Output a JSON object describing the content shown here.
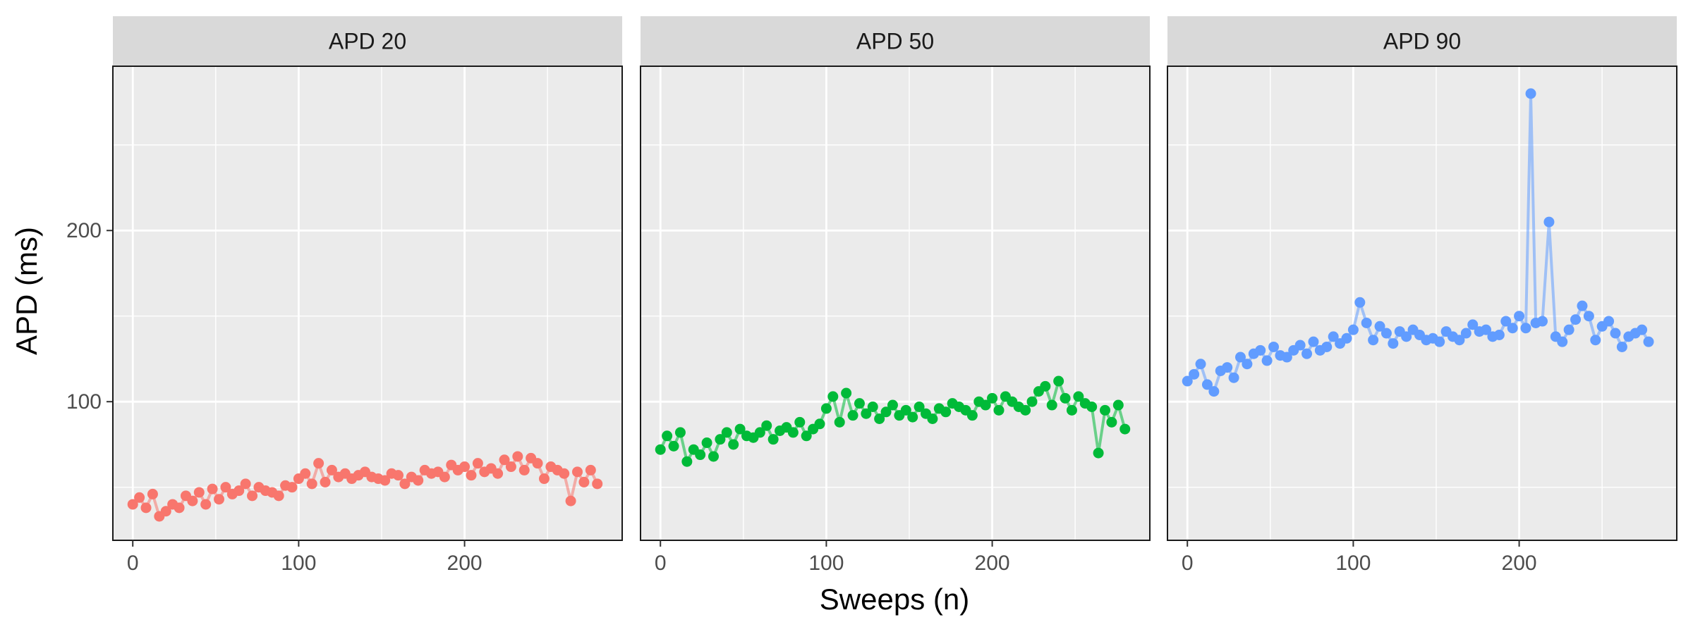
{
  "chart_data": {
    "type": "line",
    "xlabel": "Sweeps (n)",
    "ylabel": "APD (ms)",
    "xlim": [
      -12,
      295
    ],
    "ylim": [
      19,
      296
    ],
    "xticks": [
      0,
      100,
      200
    ],
    "yticks": [
      100,
      200
    ],
    "grid": true,
    "legend": "none",
    "panels": [
      {
        "name": "APD 20",
        "color": "#F8766D",
        "x": [
          0,
          4,
          8,
          12,
          16,
          20,
          24,
          28,
          32,
          36,
          40,
          44,
          48,
          52,
          56,
          60,
          64,
          68,
          72,
          76,
          80,
          84,
          88,
          92,
          96,
          100,
          104,
          108,
          112,
          116,
          120,
          124,
          128,
          132,
          136,
          140,
          144,
          148,
          152,
          156,
          160,
          164,
          168,
          172,
          176,
          180,
          184,
          188,
          192,
          196,
          200,
          204,
          208,
          212,
          216,
          220,
          224,
          228,
          232,
          236,
          240,
          244,
          248,
          252,
          256,
          260,
          264,
          268,
          272,
          276,
          280
        ],
        "y": [
          40,
          44,
          38,
          46,
          33,
          36,
          40,
          38,
          45,
          42,
          47,
          40,
          49,
          43,
          50,
          46,
          48,
          52,
          45,
          50,
          48,
          47,
          45,
          51,
          50,
          55,
          58,
          52,
          64,
          53,
          60,
          56,
          58,
          55,
          57,
          59,
          56,
          55,
          54,
          58,
          57,
          52,
          56,
          54,
          60,
          58,
          59,
          56,
          63,
          60,
          62,
          57,
          64,
          59,
          61,
          58,
          66,
          62,
          68,
          60,
          67,
          64,
          55,
          62,
          60,
          58,
          42,
          59,
          53,
          60,
          52
        ]
      },
      {
        "name": "APD 50",
        "color": "#00BA38",
        "x": [
          0,
          4,
          8,
          12,
          16,
          20,
          24,
          28,
          32,
          36,
          40,
          44,
          48,
          52,
          56,
          60,
          64,
          68,
          72,
          76,
          80,
          84,
          88,
          92,
          96,
          100,
          104,
          108,
          112,
          116,
          120,
          124,
          128,
          132,
          136,
          140,
          144,
          148,
          152,
          156,
          160,
          164,
          168,
          172,
          176,
          180,
          184,
          188,
          192,
          196,
          200,
          204,
          208,
          212,
          216,
          220,
          224,
          228,
          232,
          236,
          240,
          244,
          248,
          252,
          256,
          260,
          264,
          268,
          272,
          276,
          280
        ],
        "y": [
          72,
          80,
          74,
          82,
          65,
          72,
          69,
          76,
          68,
          78,
          82,
          75,
          84,
          80,
          79,
          82,
          86,
          78,
          83,
          85,
          82,
          88,
          80,
          84,
          87,
          96,
          103,
          88,
          105,
          92,
          99,
          93,
          97,
          90,
          94,
          98,
          92,
          95,
          91,
          97,
          93,
          90,
          96,
          94,
          99,
          97,
          95,
          92,
          100,
          98,
          102,
          95,
          103,
          100,
          97,
          95,
          100,
          106,
          109,
          98,
          112,
          102,
          95,
          103,
          99,
          97,
          70,
          95,
          88,
          98,
          84
        ]
      },
      {
        "name": "APD 90",
        "color": "#619CFF",
        "x": [
          0,
          4,
          8,
          12,
          16,
          20,
          24,
          28,
          32,
          36,
          40,
          44,
          48,
          52,
          56,
          60,
          64,
          68,
          72,
          76,
          80,
          84,
          88,
          92,
          96,
          100,
          104,
          108,
          112,
          116,
          120,
          124,
          128,
          132,
          136,
          140,
          144,
          148,
          152,
          156,
          160,
          164,
          168,
          172,
          176,
          180,
          184,
          188,
          192,
          196,
          200,
          204,
          207,
          210,
          214,
          218,
          222,
          226,
          230,
          234,
          238,
          242,
          246,
          250,
          254,
          258,
          262,
          266,
          270,
          274,
          278
        ],
        "y": [
          112,
          116,
          122,
          110,
          106,
          118,
          120,
          114,
          126,
          122,
          128,
          130,
          124,
          132,
          127,
          126,
          130,
          133,
          128,
          135,
          130,
          132,
          138,
          134,
          137,
          142,
          158,
          146,
          136,
          144,
          140,
          134,
          141,
          138,
          142,
          139,
          136,
          137,
          135,
          141,
          138,
          136,
          140,
          145,
          141,
          142,
          138,
          139,
          147,
          143,
          150,
          143,
          280,
          146,
          147,
          205,
          138,
          135,
          142,
          148,
          156,
          150,
          136,
          144,
          147,
          140,
          132,
          138,
          140,
          142,
          135
        ]
      }
    ]
  }
}
